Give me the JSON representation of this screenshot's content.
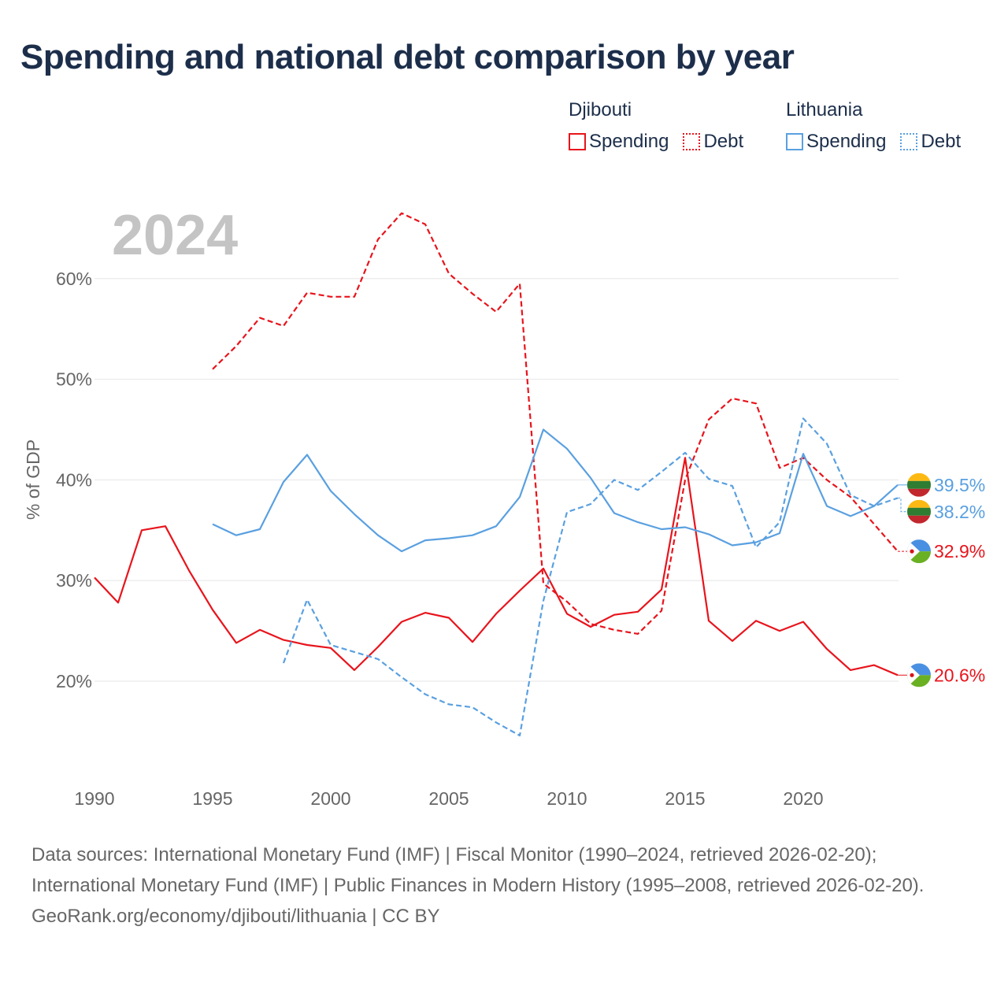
{
  "title": "Spending and national debt comparison by year",
  "legend": {
    "groups": [
      {
        "name": "Djibouti",
        "color": "#e8141c",
        "items": [
          {
            "label": "Spending",
            "style": "solid"
          },
          {
            "label": "Debt",
            "style": "dotted"
          }
        ]
      },
      {
        "name": "Lithuania",
        "color": "#5aa0e0",
        "items": [
          {
            "label": "Spending",
            "style": "solid"
          },
          {
            "label": "Debt",
            "style": "dotted"
          }
        ]
      }
    ]
  },
  "year_watermark": "2024",
  "chart_data": {
    "type": "line",
    "ylabel": "% of GDP",
    "xlim": [
      1990,
      2024
    ],
    "ylim": [
      10,
      65
    ],
    "x_ticks": [
      1990,
      1995,
      2000,
      2005,
      2010,
      2015,
      2020
    ],
    "x_tick_labels": [
      "1990",
      "1995",
      "2000",
      "2005",
      "2010",
      "2015",
      "2020"
    ],
    "y_ticks": [
      20,
      30,
      40,
      50,
      60
    ],
    "y_tick_labels": [
      "20%",
      "30%",
      "40%",
      "50%",
      "60%"
    ],
    "series": [
      {
        "name": "Djibouti Spending",
        "country": "Djibouti",
        "measure": "Spending",
        "dash": "solid",
        "color": "#e8141c",
        "x": [
          1990,
          1991,
          1992,
          1993,
          1994,
          1995,
          1996,
          1997,
          1998,
          1999,
          2000,
          2001,
          2002,
          2003,
          2004,
          2005,
          2006,
          2007,
          2008,
          2009,
          2010,
          2011,
          2012,
          2013,
          2014,
          2015,
          2016,
          2017,
          2018,
          2019,
          2020,
          2021,
          2022,
          2023,
          2024
        ],
        "values": [
          30.3,
          27.8,
          35.0,
          35.4,
          31.0,
          27.1,
          23.8,
          25.1,
          24.1,
          23.6,
          23.3,
          21.1,
          23.4,
          25.9,
          26.8,
          26.3,
          23.9,
          26.7,
          29.0,
          31.2,
          26.7,
          25.4,
          26.6,
          26.9,
          29.1,
          42.2,
          26.0,
          24.0,
          26.0,
          25.0,
          25.9,
          23.2,
          21.1,
          21.6,
          20.6
        ],
        "end_label": "20.6%"
      },
      {
        "name": "Djibouti Debt",
        "country": "Djibouti",
        "measure": "Debt",
        "dash": "dashed",
        "color": "#e8141c",
        "x": [
          1995,
          1996,
          1997,
          1998,
          1999,
          2000,
          2001,
          2002,
          2003,
          2004,
          2005,
          2006,
          2007,
          2008,
          2009,
          2010,
          2011,
          2012,
          2013,
          2014,
          2015,
          2016,
          2017,
          2018,
          2019,
          2020,
          2021,
          2022,
          2023,
          2024
        ],
        "values": [
          51.0,
          53.3,
          56.1,
          55.3,
          58.6,
          58.2,
          58.2,
          63.9,
          66.5,
          65.4,
          60.5,
          58.5,
          56.7,
          59.5,
          29.7,
          27.9,
          25.7,
          25.1,
          24.7,
          27.0,
          40.0,
          46.0,
          48.1,
          47.6,
          41.2,
          42.2,
          40.0,
          38.3,
          35.6,
          32.9
        ],
        "end_label": "32.9%"
      },
      {
        "name": "Lithuania Spending",
        "country": "Lithuania",
        "measure": "Spending",
        "dash": "solid",
        "color": "#5aa0e0",
        "x": [
          1995,
          1996,
          1997,
          1998,
          1999,
          2000,
          2001,
          2002,
          2003,
          2004,
          2005,
          2006,
          2007,
          2008,
          2009,
          2010,
          2011,
          2012,
          2013,
          2014,
          2015,
          2016,
          2017,
          2018,
          2019,
          2020,
          2021,
          2022,
          2023,
          2024
        ],
        "values": [
          35.6,
          34.5,
          35.1,
          39.8,
          42.5,
          38.9,
          36.6,
          34.5,
          32.9,
          34.0,
          34.2,
          34.5,
          35.4,
          38.3,
          45.0,
          43.1,
          40.2,
          36.7,
          35.8,
          35.1,
          35.3,
          34.6,
          33.5,
          33.8,
          34.7,
          42.6,
          37.4,
          36.4,
          37.4,
          39.5
        ],
        "end_label": "39.5%"
      },
      {
        "name": "Lithuania Debt",
        "country": "Lithuania",
        "measure": "Debt",
        "dash": "dashed",
        "color": "#5aa0e0",
        "x": [
          1998,
          1999,
          2000,
          2001,
          2002,
          2003,
          2004,
          2005,
          2006,
          2007,
          2008,
          2009,
          2010,
          2011,
          2012,
          2013,
          2014,
          2015,
          2016,
          2017,
          2018,
          2019,
          2020,
          2021,
          2022,
          2023,
          2024
        ],
        "values": [
          21.8,
          28.1,
          23.6,
          22.9,
          22.2,
          20.4,
          18.7,
          17.7,
          17.4,
          15.9,
          14.6,
          28.0,
          36.8,
          37.6,
          40.0,
          39.0,
          40.8,
          42.7,
          40.1,
          39.4,
          33.3,
          35.8,
          46.1,
          43.6,
          38.5,
          37.4,
          38.2
        ],
        "end_label": "38.2%"
      }
    ]
  },
  "source": {
    "line1": "Data sources: International Monetary Fund (IMF) | Fiscal Monitor (1990–2024, retrieved 2026-02-20); International Monetary Fund (IMF) | Public Finances in Modern History (1995–2008, retrieved 2026-02-20).",
    "line2": "GeoRank.org/economy/djibouti/lithuania | CC BY"
  },
  "colors": {
    "djibouti": "#e8141c",
    "lithuania": "#5aa0e0",
    "grid": "#e6e6e6",
    "axis_text": "#666666",
    "watermark": "#c4c4c4",
    "title": "#1c2e4a"
  }
}
